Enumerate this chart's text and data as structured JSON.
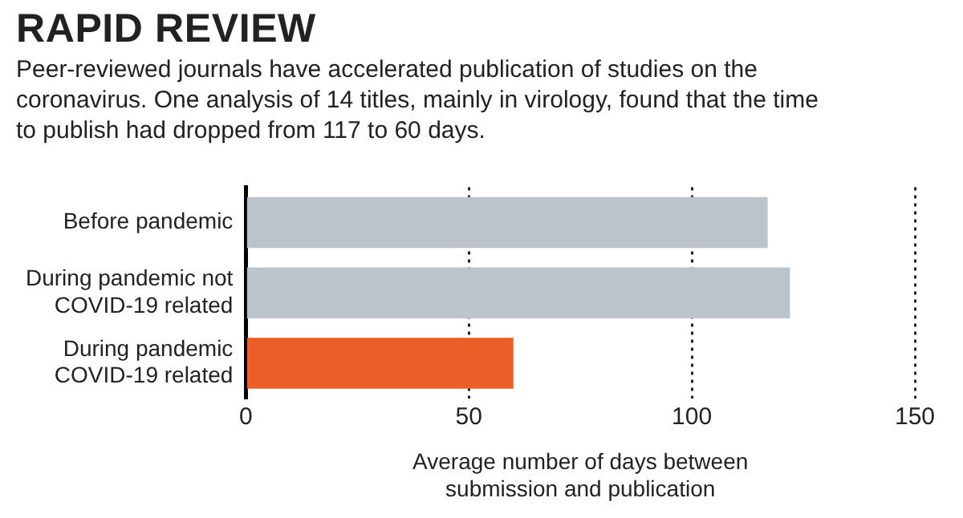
{
  "chart_data": {
    "type": "bar",
    "orientation": "horizontal",
    "title": "RAPID REVIEW",
    "subtitle": "Peer-reviewed journals have accelerated publication of studies on the coronavirus. One analysis of 14 titles, mainly in virology, found that the time to publish had dropped from 117 to 60 days.",
    "categories": [
      "Before pandemic",
      "During pandemic not COVID-19 related",
      "During pandemic COVID-19 related"
    ],
    "values": [
      117,
      122,
      60
    ],
    "colors": [
      "#bcc3cb",
      "#bcc3cb",
      "#eb5e28"
    ],
    "xlim": [
      0,
      150
    ],
    "xticks": [
      0,
      50,
      100,
      150
    ],
    "xlabel": "Average number of days between submission and publication",
    "grid": "x",
    "legend": false
  }
}
